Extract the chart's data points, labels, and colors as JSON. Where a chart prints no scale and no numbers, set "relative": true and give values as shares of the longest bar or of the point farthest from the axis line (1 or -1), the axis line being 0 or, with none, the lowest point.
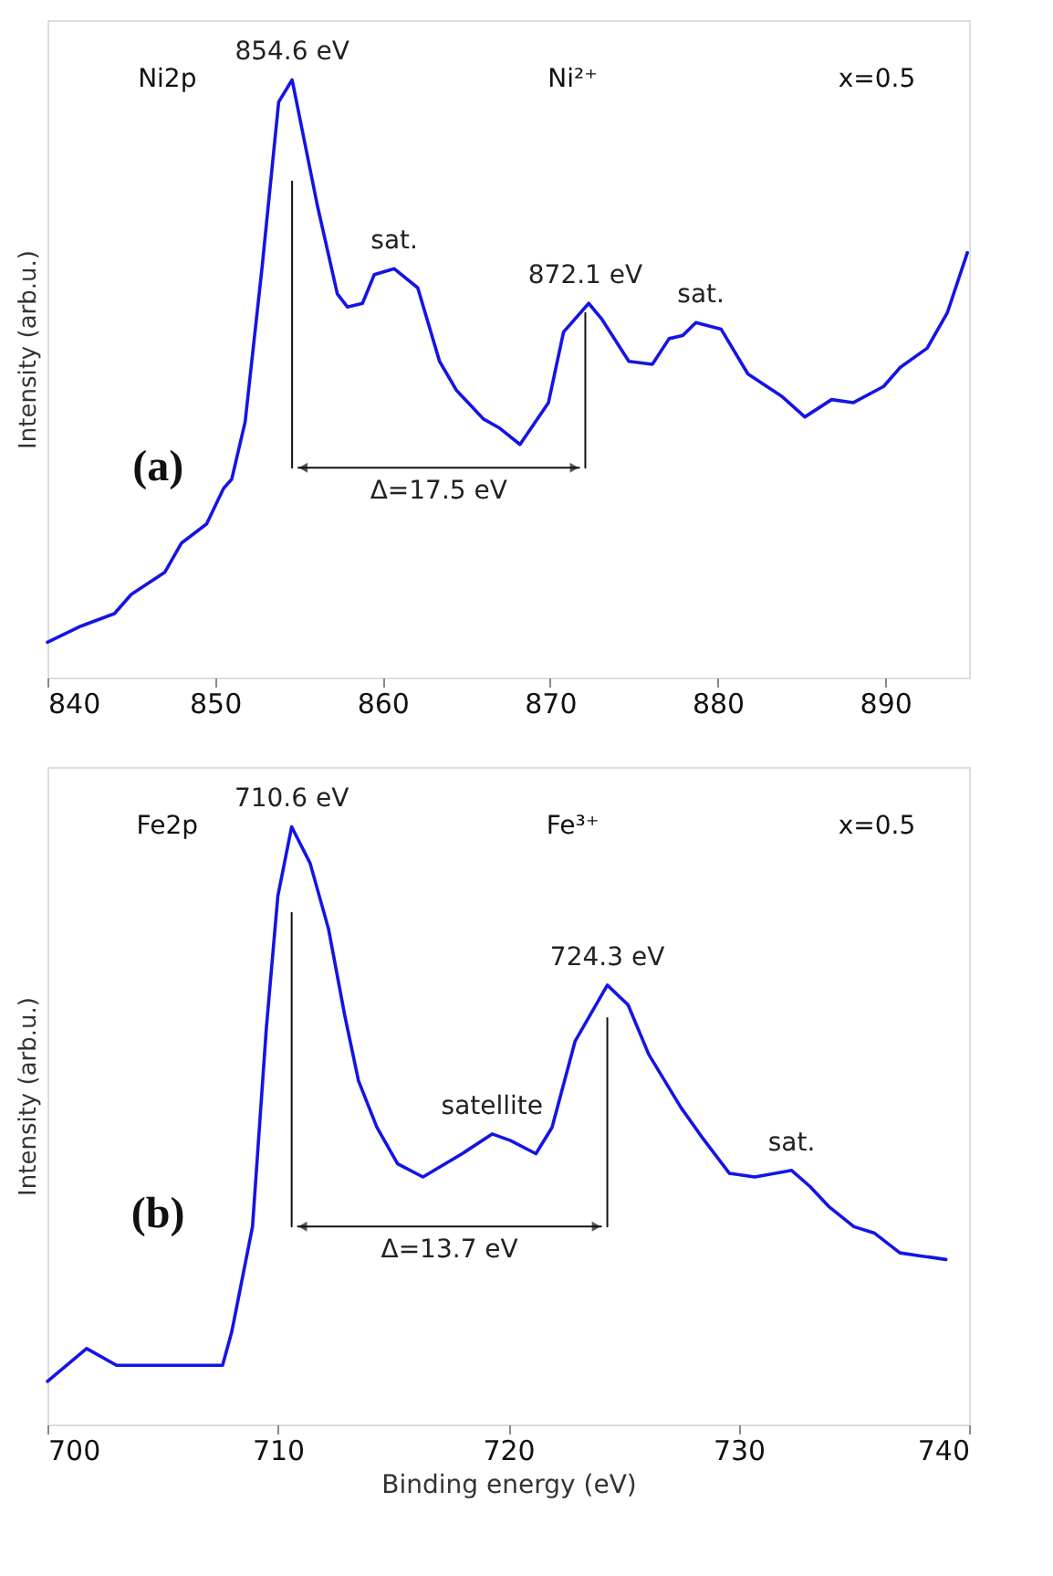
{
  "chart_data": [
    {
      "type": "line",
      "relative": true,
      "ylabel": "Intensity (arb.u.)",
      "xlim": [
        840,
        895
      ],
      "xticks": [
        840,
        850,
        860,
        870,
        880,
        890
      ],
      "grid": false,
      "x": [
        840,
        842,
        844,
        845,
        847,
        848,
        849.5,
        850.5,
        851,
        851.8,
        852.8,
        853.8,
        854.6,
        856.1,
        857.3,
        857.9,
        858.8,
        859.5,
        860.7,
        862.1,
        863.4,
        864.4,
        866,
        867,
        868.2,
        869.9,
        870.8,
        872.3,
        873.1,
        874.7,
        876.1,
        877.1,
        877.9,
        878.7,
        880.2,
        881.8,
        883.8,
        885.2,
        886.8,
        888.1,
        889.9,
        890.9,
        892.5,
        893.7,
        894.9
      ],
      "series": [
        {
          "color": "#1414e6",
          "values": [
            0.059,
            0.086,
            0.107,
            0.139,
            0.176,
            0.225,
            0.257,
            0.316,
            0.332,
            0.428,
            0.684,
            0.963,
            1.0,
            0.791,
            0.642,
            0.62,
            0.626,
            0.674,
            0.684,
            0.652,
            0.529,
            0.481,
            0.433,
            0.417,
            0.39,
            0.46,
            0.578,
            0.626,
            0.599,
            0.529,
            0.524,
            0.567,
            0.572,
            0.594,
            0.583,
            0.508,
            0.471,
            0.436,
            0.465,
            0.46,
            0.487,
            0.519,
            0.551,
            0.61,
            0.711
          ]
        },
        {
          "type": "line",
          "color": "#111111",
          "x": [
            854.6,
            854.6
          ],
          "values": [
            0.351,
            0.83
          ]
        },
        {
          "type": "line",
          "color": "#111111",
          "x": [
            872.1,
            872.1
          ],
          "values": [
            0.351,
            0.61
          ]
        }
      ],
      "annotations": [
        {
          "text": "854.6 eV",
          "x": 854.6,
          "y": 1.0
        },
        {
          "text": "872.1 eV",
          "x": 872.1,
          "y": 0.626
        },
        {
          "text": "sat.",
          "x": 860.7,
          "y": 0.684
        },
        {
          "text": "sat.",
          "x": 879,
          "y": 0.594
        },
        "Ni2p",
        "Ni²⁺",
        "x=0.5",
        "(a)",
        "Δ=17.5 eV"
      ]
    },
    {
      "type": "line",
      "relative": true,
      "xlabel": "Binding energy (eV)",
      "ylabel": "Intensity (arb.u.)",
      "xlim": [
        700,
        740
      ],
      "xticks": [
        700,
        710,
        720,
        730,
        740
      ],
      "grid": false,
      "x": [
        700,
        701.7,
        703,
        705,
        707.6,
        708,
        708.9,
        709.5,
        710,
        710.6,
        711.4,
        712.2,
        712.9,
        713.5,
        714.3,
        715.2,
        716.3,
        718,
        719.3,
        720.1,
        721.2,
        721.9,
        722.9,
        724.3,
        725.2,
        726.1,
        727.5,
        728.4,
        729.6,
        730.7,
        732.3,
        733.1,
        733.9,
        735,
        735.9,
        737,
        737.9,
        739
      ],
      "series": [
        {
          "color": "#1414e6",
          "values": [
            0.072,
            0.127,
            0.099,
            0.099,
            0.099,
            0.155,
            0.331,
            0.663,
            0.884,
            1.0,
            0.939,
            0.829,
            0.685,
            0.575,
            0.497,
            0.436,
            0.414,
            0.453,
            0.486,
            0.475,
            0.453,
            0.497,
            0.641,
            0.735,
            0.702,
            0.619,
            0.53,
            0.481,
            0.42,
            0.414,
            0.425,
            0.398,
            0.365,
            0.331,
            0.32,
            0.287,
            0.282,
            0.276
          ]
        },
        {
          "type": "line",
          "color": "#111111",
          "x": [
            710.6,
            710.6
          ],
          "values": [
            0.331,
            0.856
          ]
        },
        {
          "type": "line",
          "color": "#111111",
          "x": [
            724.3,
            724.3
          ],
          "values": [
            0.331,
            0.68
          ]
        }
      ],
      "annotations": [
        {
          "text": "710.6 eV",
          "x": 710.6,
          "y": 1.0
        },
        {
          "text": "724.3 eV",
          "x": 724.3,
          "y": 0.735
        },
        {
          "text": "satellite",
          "x": 719.3,
          "y": 0.486
        },
        {
          "text": "sat.",
          "x": 732.3,
          "y": 0.425
        },
        "Fe2p",
        "Fe³⁺",
        "x=0.5",
        "(b)",
        "Δ=13.7 eV"
      ]
    }
  ]
}
